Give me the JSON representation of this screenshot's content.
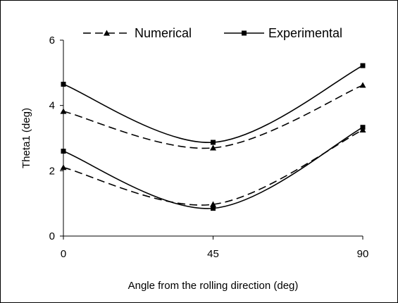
{
  "chart_data": {
    "type": "line",
    "xlabel": "Angle from the rolling direction (deg)",
    "ylabel": "Theta1 (deg)",
    "xlim": [
      0,
      90
    ],
    "ylim": [
      0,
      6
    ],
    "x_ticks": [
      "0",
      "45",
      "90"
    ],
    "y_ticks": [
      "0",
      "2",
      "4",
      "6"
    ],
    "grid": false,
    "legend_position": "top",
    "legend": [
      {
        "label": "Numerical",
        "style": "dashed",
        "marker": "triangle"
      },
      {
        "label": "Experimental",
        "style": "solid",
        "marker": "square"
      }
    ],
    "series": [
      {
        "name": "Numerical",
        "group": "upper",
        "style": "dashed",
        "marker": "triangle",
        "x": [
          0,
          45,
          90
        ],
        "values": [
          3.82,
          2.7,
          4.62
        ]
      },
      {
        "name": "Experimental",
        "group": "upper",
        "style": "solid",
        "marker": "square",
        "x": [
          0,
          45,
          90
        ],
        "values": [
          4.65,
          2.87,
          5.22
        ]
      },
      {
        "name": "Numerical",
        "group": "lower",
        "style": "dashed",
        "marker": "triangle",
        "x": [
          0,
          45,
          90
        ],
        "values": [
          2.1,
          0.97,
          3.25
        ]
      },
      {
        "name": "Experimental",
        "group": "lower",
        "style": "solid",
        "marker": "square",
        "x": [
          0,
          45,
          90
        ],
        "values": [
          2.6,
          0.85,
          3.33
        ]
      }
    ],
    "colors": {
      "line": "#000000",
      "background": "#ffffff"
    }
  }
}
